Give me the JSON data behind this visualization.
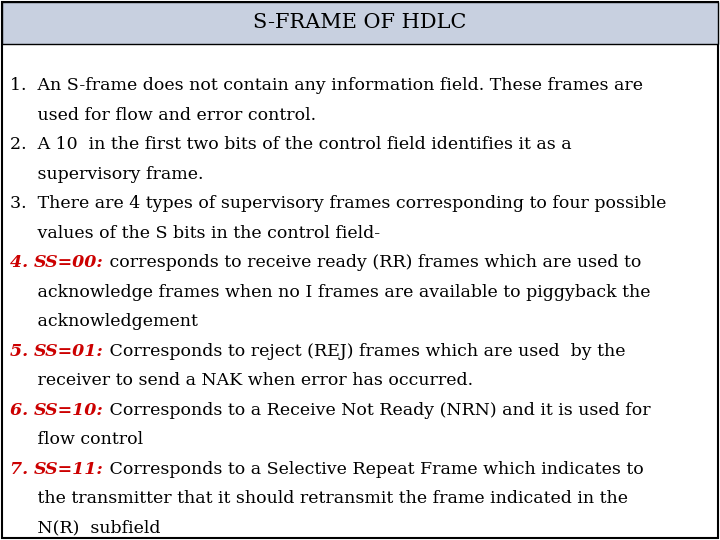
{
  "title": "S-FRAME OF HDLC",
  "title_bg": "#c8d0e0",
  "bg_color": "#ffffff",
  "border_color": "#000000",
  "title_fontsize": 15,
  "body_fontsize": 12.5,
  "figsize": [
    7.2,
    5.4
  ],
  "dpi": 100,
  "segments": [
    [
      {
        "text": "1.  An S-frame does not contain any information field. These frames are",
        "color": "#000000",
        "style": "normal",
        "weight": "normal"
      }
    ],
    [
      {
        "text": "     used for flow and error control.",
        "color": "#000000",
        "style": "normal",
        "weight": "normal"
      }
    ],
    [
      {
        "text": "2.  A 10  in the first two bits of the control field identifies it as a",
        "color": "#000000",
        "style": "normal",
        "weight": "normal"
      }
    ],
    [
      {
        "text": "     supervisory frame.",
        "color": "#000000",
        "style": "normal",
        "weight": "normal"
      }
    ],
    [
      {
        "text": "3.  There are 4 types of supervisory frames corresponding to four possible",
        "color": "#000000",
        "style": "normal",
        "weight": "normal"
      }
    ],
    [
      {
        "text": "     values of the S bits in the control field-",
        "color": "#000000",
        "style": "normal",
        "weight": "normal"
      }
    ],
    [
      {
        "text": "4. ",
        "color": "#cc0000",
        "style": "italic",
        "weight": "bold"
      },
      {
        "text": "SS=00:",
        "color": "#cc0000",
        "style": "italic",
        "weight": "bold"
      },
      {
        "text": " corresponds to receive ready (RR) frames which are used to",
        "color": "#000000",
        "style": "normal",
        "weight": "normal"
      }
    ],
    [
      {
        "text": "     acknowledge frames when no I frames are available to piggyback the",
        "color": "#000000",
        "style": "normal",
        "weight": "normal"
      }
    ],
    [
      {
        "text": "     acknowledgement",
        "color": "#000000",
        "style": "normal",
        "weight": "normal"
      }
    ],
    [
      {
        "text": "5. ",
        "color": "#cc0000",
        "style": "italic",
        "weight": "bold"
      },
      {
        "text": "SS=01:",
        "color": "#cc0000",
        "style": "italic",
        "weight": "bold"
      },
      {
        "text": " Corresponds to reject (REJ) frames which are used  by the",
        "color": "#000000",
        "style": "normal",
        "weight": "normal"
      }
    ],
    [
      {
        "text": "     receiver to send a NAK when error has occurred.",
        "color": "#000000",
        "style": "normal",
        "weight": "normal"
      }
    ],
    [
      {
        "text": "6. ",
        "color": "#cc0000",
        "style": "italic",
        "weight": "bold"
      },
      {
        "text": "SS=10:",
        "color": "#cc0000",
        "style": "italic",
        "weight": "bold"
      },
      {
        "text": " Corresponds to a Receive Not Ready (NRN) and it is used for",
        "color": "#000000",
        "style": "normal",
        "weight": "normal"
      }
    ],
    [
      {
        "text": "     flow control",
        "color": "#000000",
        "style": "normal",
        "weight": "normal"
      }
    ],
    [
      {
        "text": "7. ",
        "color": "#cc0000",
        "style": "italic",
        "weight": "bold"
      },
      {
        "text": "SS=11:",
        "color": "#cc0000",
        "style": "italic",
        "weight": "bold"
      },
      {
        "text": " Corresponds to a Selective Repeat Frame which indicates to",
        "color": "#000000",
        "style": "normal",
        "weight": "normal"
      }
    ],
    [
      {
        "text": "     the transmitter that it should retransmit the frame indicated in the",
        "color": "#000000",
        "style": "normal",
        "weight": "normal"
      }
    ],
    [
      {
        "text": "     N(R)  subfield",
        "color": "#000000",
        "style": "normal",
        "weight": "normal"
      }
    ]
  ]
}
